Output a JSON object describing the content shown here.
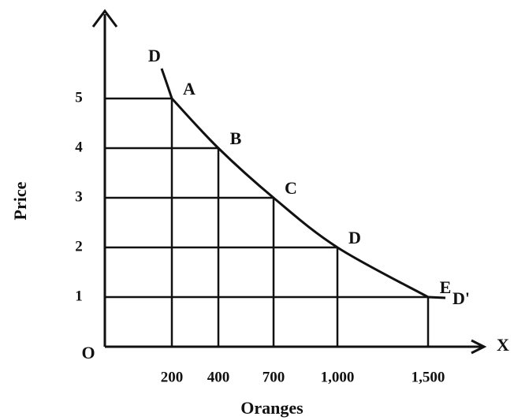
{
  "chart_data": {
    "type": "line",
    "y_axis_label": "Price",
    "x_axis_label": "Oranges",
    "origin_label": "O",
    "x_axis_end_label": "X",
    "curve_start_label": "D",
    "curve_end_label": "D'",
    "categories": [
      "200",
      "400",
      "700",
      "1,000",
      "1,500"
    ],
    "series": [
      {
        "values": [
          5,
          4,
          3,
          2,
          1
        ],
        "color": "#111111",
        "point_labels": [
          "A",
          "B",
          "C",
          "D",
          "E"
        ]
      }
    ],
    "ylim": [
      0,
      5
    ],
    "yticks": [
      1,
      2,
      3,
      4,
      5
    ],
    "grid": true
  }
}
